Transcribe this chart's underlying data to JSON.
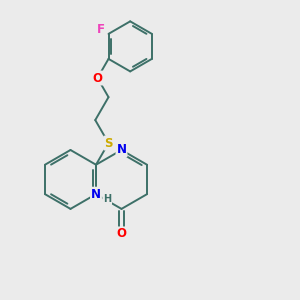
{
  "background_color": "#ebebeb",
  "bond_color": "#3d7068",
  "atom_colors": {
    "N": "#0000ee",
    "O_carbonyl": "#ff0000",
    "O_ether": "#ff0000",
    "S": "#ccaa00",
    "F": "#ee44bb",
    "H": "#3d7068"
  },
  "figsize": [
    3.0,
    3.0
  ],
  "dpi": 100,
  "bond_lw": 1.4,
  "font_size": 8.5
}
